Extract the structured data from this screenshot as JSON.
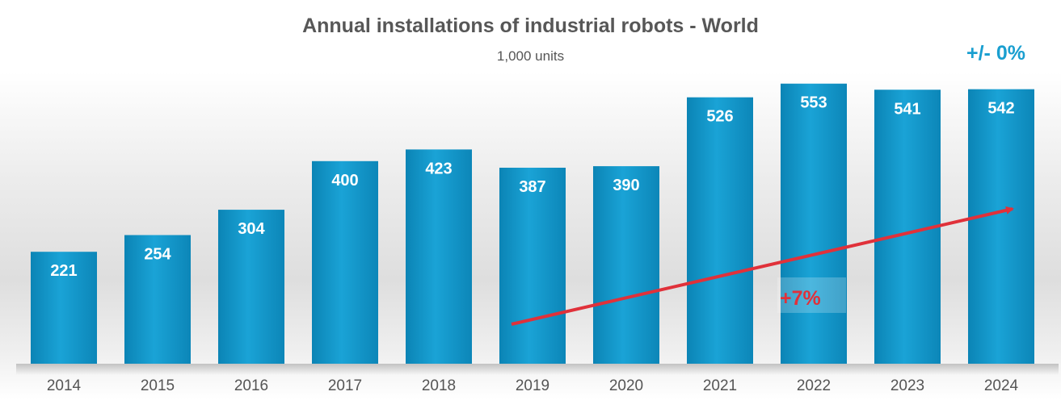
{
  "chart_data": {
    "type": "bar",
    "title": "Annual installations of industrial robots - World",
    "subtitle": "1,000 units",
    "categories": [
      "2014",
      "2015",
      "2016",
      "2017",
      "2018",
      "2019",
      "2020",
      "2021",
      "2022",
      "2023",
      "2024"
    ],
    "values": [
      221,
      254,
      304,
      400,
      423,
      387,
      390,
      526,
      553,
      541,
      542
    ],
    "ylim": [
      0,
      600
    ],
    "grid": false,
    "annotations": {
      "change_last_year": "+/- 0%",
      "trend_label": "+7%"
    },
    "colors": {
      "bar": "#0f8fc0",
      "bar_light": "#2ba9d6",
      "value_label": "#ffffff",
      "trend_arrow": "#e0313a",
      "change_label": "#1a9fd0"
    }
  }
}
